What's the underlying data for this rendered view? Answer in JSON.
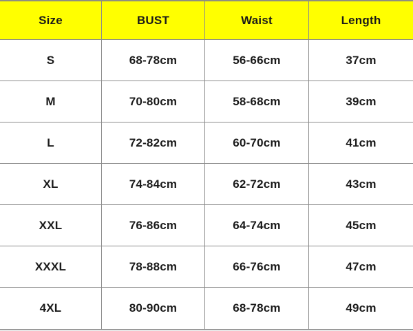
{
  "chart_data": {
    "type": "table",
    "columns": [
      "Size",
      "BUST",
      "Waist",
      "Length"
    ],
    "rows": [
      [
        "S",
        "68-78cm",
        "56-66cm",
        "37cm"
      ],
      [
        "M",
        "70-80cm",
        "58-68cm",
        "39cm"
      ],
      [
        "L",
        "72-82cm",
        "60-70cm",
        "41cm"
      ],
      [
        "XL",
        "74-84cm",
        "62-72cm",
        "43cm"
      ],
      [
        "XXL",
        "76-86cm",
        "64-74cm",
        "45cm"
      ],
      [
        "XXXL",
        "78-88cm",
        "66-76cm",
        "47cm"
      ],
      [
        "4XL",
        "80-90cm",
        "68-78cm",
        "49cm"
      ]
    ],
    "layout": {
      "header_position": "top",
      "grid": "on",
      "unit": "cm"
    }
  },
  "colors": {
    "header_bg": "#ffff00",
    "text": "#1a1a1a",
    "grid_line": "#8c8c8c",
    "outer_border_top": "#8f8f7e",
    "outer_border_bottom": "#9a9a9a",
    "background": "#ffffff"
  }
}
